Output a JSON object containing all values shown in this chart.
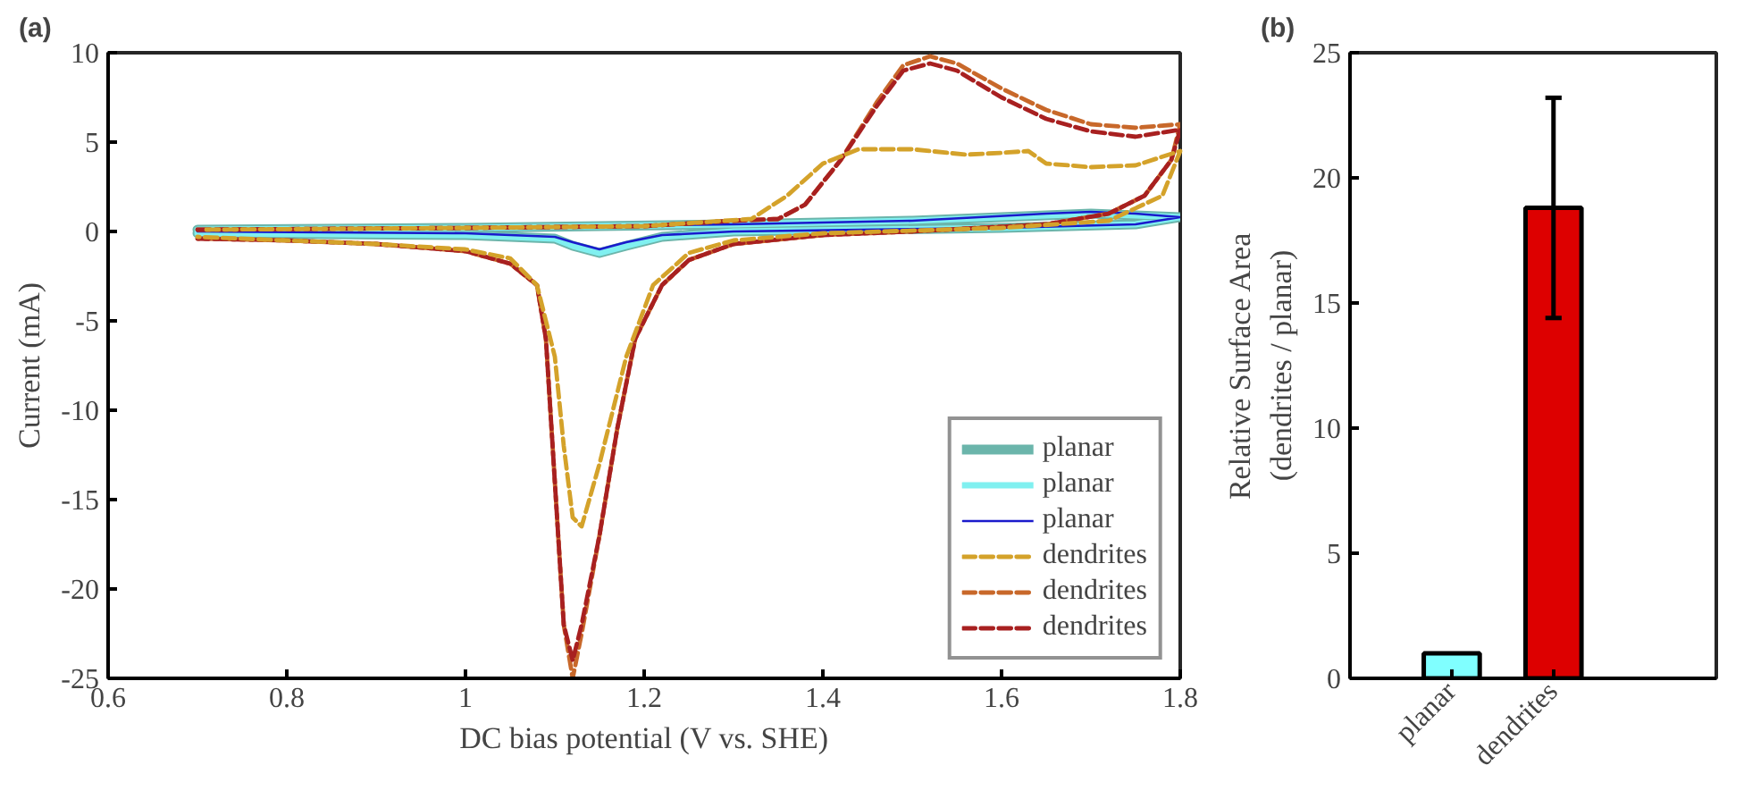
{
  "chart_data": [
    {
      "type": "line",
      "title": "(a)",
      "xlabel": "DC bias potential (V vs. SHE)",
      "ylabel": "Current (mA)",
      "xlim": [
        0.6,
        1.8
      ],
      "ylim": [
        -25,
        10
      ],
      "xticks": [
        0.6,
        0.8,
        1,
        1.2,
        1.4,
        1.6,
        1.8
      ],
      "yticks": [
        -25,
        -20,
        -15,
        -10,
        -5,
        0,
        5,
        10
      ],
      "grid": false,
      "legend": "bottom right",
      "marker": "none",
      "series": [
        {
          "name": "planar",
          "color": "#6bb5ab",
          "line_style": "solid",
          "x": [
            0.7,
            1.0,
            1.3,
            1.5,
            1.65,
            1.7,
            1.75,
            1.8,
            1.75,
            1.6,
            1.3,
            1.22,
            1.18,
            1.15,
            1.12,
            1.1,
            1.0,
            0.7
          ],
          "values": [
            0.1,
            0.2,
            0.4,
            0.6,
            0.9,
            1.0,
            0.9,
            0.8,
            0.4,
            0.2,
            0,
            -0.3,
            -0.8,
            -1.2,
            -0.8,
            -0.4,
            -0.2,
            -0.1
          ]
        },
        {
          "name": "planar",
          "color": "#80f0f0",
          "line_style": "solid",
          "x": [
            0.7,
            1.0,
            1.3,
            1.5,
            1.65,
            1.7,
            1.75,
            1.8,
            1.75,
            1.6,
            1.3,
            1.22,
            1.18,
            1.15,
            1.12,
            1.1,
            1.0,
            0.7
          ],
          "values": [
            0.1,
            0.2,
            0.4,
            0.6,
            0.9,
            1.0,
            0.9,
            0.8,
            0.4,
            0.2,
            0,
            -0.3,
            -0.8,
            -1.2,
            -0.8,
            -0.4,
            -0.2,
            -0.1
          ]
        },
        {
          "name": "planar",
          "color": "#1a1acc",
          "line_style": "solid",
          "x": [
            0.7,
            1.0,
            1.3,
            1.5,
            1.65,
            1.7,
            1.75,
            1.8,
            1.75,
            1.6,
            1.3,
            1.22,
            1.18,
            1.15,
            1.12,
            1.1,
            1.0,
            0.7
          ],
          "values": [
            0.1,
            0.2,
            0.4,
            0.6,
            1.0,
            1.1,
            1.0,
            0.8,
            0.4,
            0.2,
            0,
            -0.2,
            -0.6,
            -1.0,
            -0.6,
            -0.3,
            -0.1,
            0
          ]
        },
        {
          "name": "dendrites",
          "color": "#d4a22a",
          "line_style": "dashed",
          "x": [
            0.71,
            1.0,
            1.2,
            1.32,
            1.36,
            1.4,
            1.44,
            1.5,
            1.56,
            1.6,
            1.63,
            1.65,
            1.7,
            1.75,
            1.8,
            1.78,
            1.72,
            1.6,
            1.4,
            1.3,
            1.25,
            1.21,
            1.18,
            1.15,
            1.13,
            1.12,
            1.11,
            1.1,
            1.08,
            1.05,
            1.0,
            0.9,
            0.8,
            0.7
          ],
          "values": [
            0.1,
            0.2,
            0.3,
            0.7,
            2,
            3.8,
            4.6,
            4.6,
            4.3,
            4.4,
            4.5,
            3.8,
            3.6,
            3.7,
            4.5,
            2,
            0.6,
            0.2,
            -0.1,
            -0.5,
            -1.2,
            -3,
            -7,
            -13,
            -16.5,
            -16,
            -12,
            -7,
            -3,
            -1.5,
            -1.0,
            -0.7,
            -0.5,
            -0.3
          ]
        },
        {
          "name": "dendrites",
          "color": "#c8682a",
          "line_style": "dashed",
          "x": [
            0.7,
            1.0,
            1.2,
            1.3,
            1.35,
            1.38,
            1.42,
            1.46,
            1.49,
            1.52,
            1.55,
            1.6,
            1.65,
            1.7,
            1.75,
            1.8,
            1.79,
            1.76,
            1.72,
            1.65,
            1.5,
            1.4,
            1.3,
            1.25,
            1.22,
            1.19,
            1.17,
            1.15,
            1.13,
            1.12,
            1.11,
            1.1,
            1.09,
            1.08,
            1.05,
            1.0,
            0.9,
            0.8,
            0.7
          ],
          "values": [
            0.1,
            0.2,
            0.3,
            0.6,
            0.7,
            1.5,
            4,
            7.2,
            9.3,
            9.8,
            9.4,
            8,
            6.8,
            6.0,
            5.8,
            6.0,
            4,
            2,
            1,
            0.4,
            0,
            -0.2,
            -0.7,
            -1.6,
            -3,
            -6,
            -11,
            -17,
            -22.5,
            -25,
            -22,
            -14,
            -6,
            -3,
            -1.8,
            -1.1,
            -0.7,
            -0.5,
            -0.4
          ]
        },
        {
          "name": "dendrites",
          "color": "#a82020",
          "line_style": "dashed",
          "x": [
            0.7,
            1.0,
            1.2,
            1.3,
            1.35,
            1.38,
            1.42,
            1.46,
            1.49,
            1.52,
            1.55,
            1.6,
            1.65,
            1.7,
            1.75,
            1.8,
            1.79,
            1.76,
            1.72,
            1.65,
            1.5,
            1.4,
            1.3,
            1.25,
            1.22,
            1.19,
            1.17,
            1.15,
            1.13,
            1.12,
            1.11,
            1.1,
            1.09,
            1.08,
            1.05,
            1.0,
            0.9,
            0.8,
            0.7
          ],
          "values": [
            0.1,
            0.2,
            0.3,
            0.6,
            0.7,
            1.5,
            4,
            7,
            9,
            9.4,
            9,
            7.5,
            6.3,
            5.6,
            5.3,
            5.7,
            4,
            2,
            1,
            0.4,
            0,
            -0.2,
            -0.7,
            -1.6,
            -3,
            -6,
            -11,
            -17,
            -22,
            -24,
            -22,
            -14,
            -6,
            -3,
            -1.8,
            -1.1,
            -0.7,
            -0.5,
            -0.4
          ]
        }
      ]
    },
    {
      "type": "bar",
      "title": "(b)",
      "ylabel": "Relative Surface Area\n(dendrites / planar)",
      "categories": [
        "planar",
        "dendrites"
      ],
      "values": [
        1.0,
        18.8
      ],
      "colors": [
        "#80ffff",
        "#dd0000"
      ],
      "errors": [
        null,
        [
          14.4,
          23.2
        ]
      ],
      "ylim": [
        0,
        25
      ],
      "yticks": [
        0,
        5,
        10,
        15,
        20,
        25
      ],
      "grid": false
    }
  ]
}
